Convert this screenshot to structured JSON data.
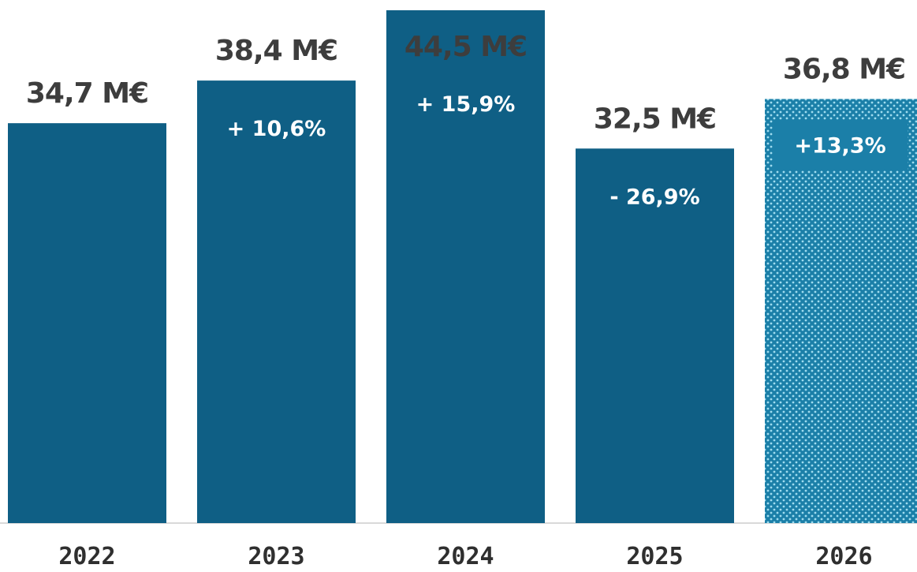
{
  "chart_data": {
    "type": "bar",
    "categories": [
      "2022",
      "2023",
      "2024",
      "2025",
      "2026"
    ],
    "values": [
      34.7,
      38.4,
      44.5,
      32.5,
      36.8
    ],
    "value_labels": [
      "34,7 M€",
      "38,4 M€",
      "44,5 M€",
      "32,5 M€",
      "36,8 M€"
    ],
    "change_labels": [
      "",
      "+ 10,6%",
      "+ 15,9%",
      "- 26,9%",
      "+13,3%"
    ],
    "forecast_index": 4,
    "ylim": [
      0,
      44.5
    ],
    "grid": false,
    "legend": "none",
    "colors": {
      "bar": "#0f5f85",
      "forecast_bar": "#1b7fa8",
      "forecast_dots": "#9fdcef",
      "value_label": "#3d3d3d",
      "change_label": "#ffffff",
      "tick_label": "#2f2f2f",
      "baseline": "#d9d9d9"
    }
  }
}
